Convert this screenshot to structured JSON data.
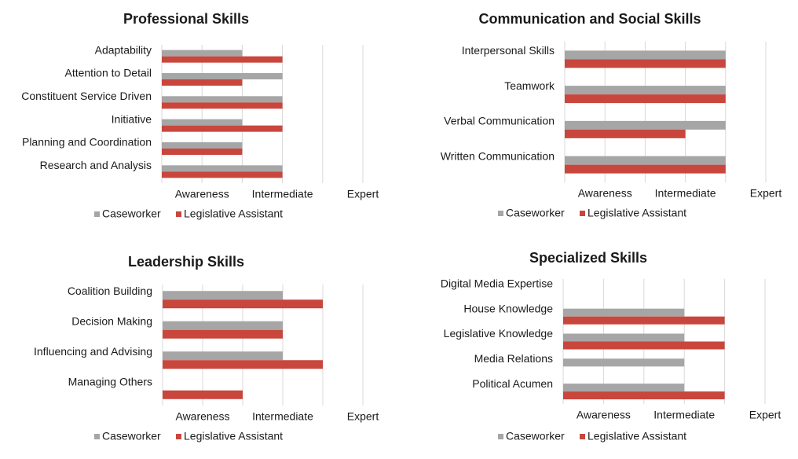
{
  "chart_data": [
    {
      "type": "bar",
      "orientation": "horizontal",
      "title": "Professional Skills",
      "categories": [
        "Adaptability",
        "Attention to Detail",
        "Constituent Service Driven",
        "Initiative",
        "Planning and Coordination",
        "Research and Analysis"
      ],
      "series": [
        {
          "name": "Caseworker",
          "values": [
            2,
            3,
            3,
            2,
            2,
            3
          ]
        },
        {
          "name": "Legislative Assistant",
          "values": [
            3,
            2,
            3,
            3,
            2,
            3
          ]
        }
      ],
      "xlim": [
        0,
        5
      ],
      "tick_labels": [
        "Awareness",
        "Intermediate",
        "Expert"
      ],
      "legend": "bottom",
      "grid": true
    },
    {
      "type": "bar",
      "orientation": "horizontal",
      "title": "Communication and Social Skills",
      "categories": [
        "Interpersonal Skills",
        "Teamwork",
        "Verbal Communication",
        "Written Communication"
      ],
      "series": [
        {
          "name": "Caseworker",
          "values": [
            4,
            4,
            4,
            4
          ]
        },
        {
          "name": "Legislative Assistant",
          "values": [
            4,
            4,
            3,
            4
          ]
        }
      ],
      "xlim": [
        0,
        5
      ],
      "tick_labels": [
        "Awareness",
        "Intermediate",
        "Expert"
      ],
      "legend": "bottom",
      "grid": true
    },
    {
      "type": "bar",
      "orientation": "horizontal",
      "title": "Leadership Skills",
      "categories": [
        "Coalition Building",
        "Decision Making",
        "Influencing and Advising",
        "Managing Others"
      ],
      "series": [
        {
          "name": "Caseworker",
          "values": [
            3,
            3,
            3,
            0
          ]
        },
        {
          "name": "Legislative Assistant",
          "values": [
            4,
            3,
            4,
            2
          ]
        }
      ],
      "xlim": [
        0,
        5
      ],
      "tick_labels": [
        "Awareness",
        "Intermediate",
        "Expert"
      ],
      "legend": "bottom",
      "grid": true
    },
    {
      "type": "bar",
      "orientation": "horizontal",
      "title": "Specialized Skills",
      "categories": [
        "Digital Media Expertise",
        "House Knowledge",
        "Legislative Knowledge",
        "Media Relations",
        "Political Acumen"
      ],
      "series": [
        {
          "name": "Caseworker",
          "values": [
            0,
            3,
            3,
            3,
            3
          ]
        },
        {
          "name": "Legislative Assistant",
          "values": [
            0,
            4,
            4,
            0,
            4
          ]
        }
      ],
      "xlim": [
        0,
        5
      ],
      "tick_labels": [
        "Awareness",
        "Intermediate",
        "Expert"
      ],
      "legend": "bottom",
      "grid": true
    }
  ],
  "colors": {
    "caseworker": "#a6a6a6",
    "legislative_assistant": "#c9463d",
    "gridline": "#d9d9d9",
    "text": "#1a1a1a"
  }
}
